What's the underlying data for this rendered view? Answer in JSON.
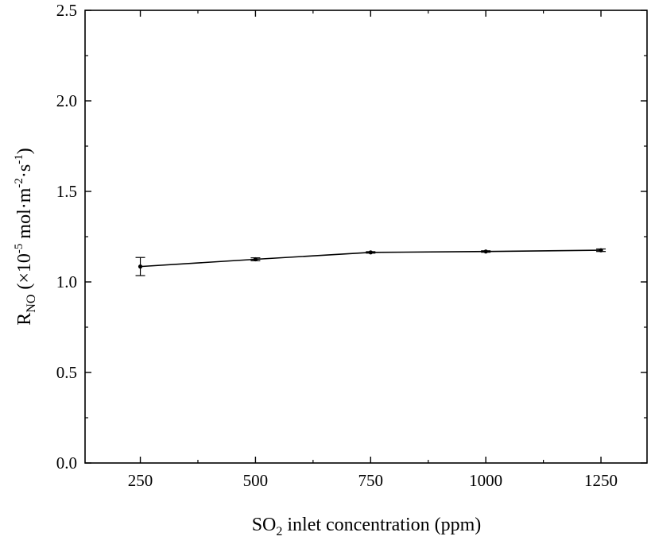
{
  "chart_data": {
    "type": "line",
    "title": "",
    "xlabel": {
      "pre": "SO",
      "sub": "2",
      "post": " inlet concentration (ppm)"
    },
    "ylabel": {
      "pre": "R",
      "sub": "NO",
      "mid": " (×10",
      "sup1": "-5",
      "mid2": " mol·m",
      "sup2": "-2",
      "mid3": "·s",
      "sup3": "-1",
      "post": ")"
    },
    "xlim": [
      130,
      1350
    ],
    "ylim": [
      0,
      2.5
    ],
    "x_ticks": [
      250,
      500,
      750,
      1000,
      1250
    ],
    "x_tick_labels": [
      "250",
      "500",
      "750",
      "1000",
      "1250"
    ],
    "y_ticks": [
      0,
      0.5,
      1.0,
      1.5,
      2.0,
      2.5
    ],
    "y_tick_labels": [
      "0.0",
      "0.5",
      "1.0",
      "1.5",
      "2.0",
      "2.5"
    ],
    "grid": false,
    "series": [
      {
        "x": [
          250,
          500,
          750,
          1000,
          1250
        ],
        "y": [
          1.085,
          1.125,
          1.163,
          1.168,
          1.175
        ],
        "error": [
          0.05,
          0.008,
          0.004,
          0.004,
          0.007
        ],
        "color": "#000000",
        "marker": "circle"
      }
    ]
  }
}
